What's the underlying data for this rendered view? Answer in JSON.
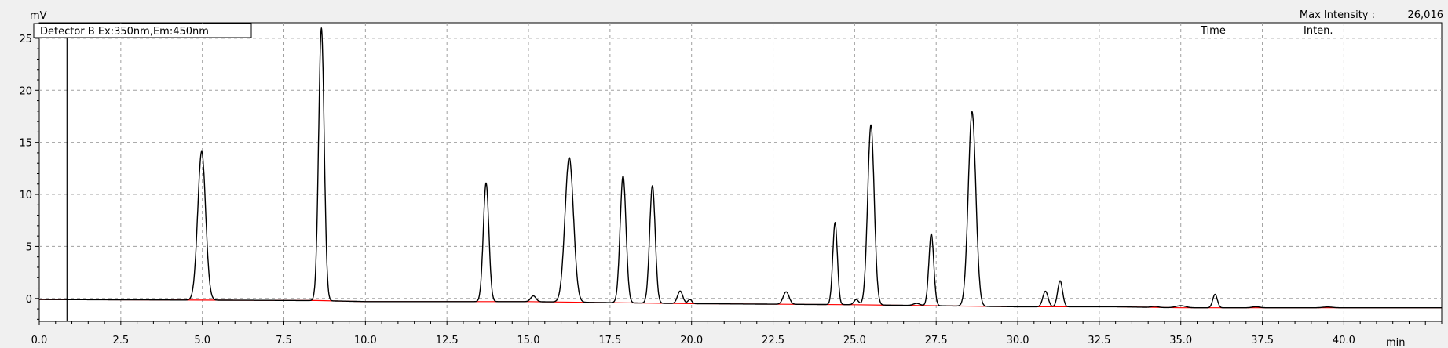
{
  "header": {
    "y_unit": "mV",
    "max_intensity_label": "Max Intensity :",
    "max_intensity_value": "26,016",
    "table_time_header": "Time",
    "table_inten_header": "Inten."
  },
  "colors": {
    "trace": "#000000",
    "baseline": "#ff0000",
    "grid": "#a0a0a0",
    "plot_background": "#ffffff",
    "window_background": "#f0f0f0"
  },
  "chart_data": {
    "type": "line",
    "title": "Detector B Ex:350nm,Em:450nm",
    "xlabel": "min",
    "ylabel": "mV",
    "xlim": [
      0.0,
      43.0
    ],
    "ylim": [
      -2.2,
      26.5
    ],
    "grid": true,
    "x_ticks": [
      "0.0",
      "2.5",
      "5.0",
      "7.5",
      "10.0",
      "12.5",
      "15.0",
      "17.5",
      "20.0",
      "22.5",
      "25.0",
      "27.5",
      "30.0",
      "32.5",
      "35.0",
      "37.5",
      "40.0"
    ],
    "y_ticks": [
      "0",
      "5",
      "10",
      "15",
      "20",
      "25"
    ],
    "marker_x": 0.85,
    "baseline_points": [
      [
        0.0,
        -0.1
      ],
      [
        8.5,
        -0.2
      ],
      [
        10.0,
        -0.3
      ],
      [
        15.0,
        -0.3
      ],
      [
        20.0,
        -0.5
      ],
      [
        25.0,
        -0.6
      ],
      [
        30.0,
        -0.8
      ],
      [
        33.0,
        -0.8
      ],
      [
        35.0,
        -0.9
      ],
      [
        38.0,
        -0.9
      ],
      [
        43.0,
        -0.9
      ]
    ],
    "peaks": [
      {
        "rt": 4.98,
        "height": 14.3,
        "width": 0.12
      },
      {
        "rt": 8.65,
        "height": 26.2,
        "width": 0.085
      },
      {
        "rt": 13.7,
        "height": 11.4,
        "width": 0.085
      },
      {
        "rt": 15.15,
        "height": 0.55,
        "width": 0.08
      },
      {
        "rt": 16.25,
        "height": 13.9,
        "width": 0.13
      },
      {
        "rt": 17.9,
        "height": 12.2,
        "width": 0.09
      },
      {
        "rt": 18.8,
        "height": 11.3,
        "width": 0.085
      },
      {
        "rt": 19.65,
        "height": 1.2,
        "width": 0.08
      },
      {
        "rt": 19.95,
        "height": 0.4,
        "width": 0.06
      },
      {
        "rt": 22.9,
        "height": 1.2,
        "width": 0.09
      },
      {
        "rt": 24.4,
        "height": 7.9,
        "width": 0.07
      },
      {
        "rt": 25.05,
        "height": 0.5,
        "width": 0.07
      },
      {
        "rt": 25.5,
        "height": 17.3,
        "width": 0.1
      },
      {
        "rt": 26.9,
        "height": 0.2,
        "width": 0.1
      },
      {
        "rt": 27.35,
        "height": 6.9,
        "width": 0.075
      },
      {
        "rt": 28.6,
        "height": 18.7,
        "width": 0.115
      },
      {
        "rt": 30.85,
        "height": 1.5,
        "width": 0.08
      },
      {
        "rt": 31.3,
        "height": 2.5,
        "width": 0.075
      },
      {
        "rt": 34.2,
        "height": 0.1,
        "width": 0.1
      },
      {
        "rt": 35.0,
        "height": 0.2,
        "width": 0.15
      },
      {
        "rt": 36.05,
        "height": 1.3,
        "width": 0.07
      },
      {
        "rt": 37.3,
        "height": 0.1,
        "width": 0.12
      },
      {
        "rt": 39.5,
        "height": 0.08,
        "width": 0.15
      }
    ]
  }
}
